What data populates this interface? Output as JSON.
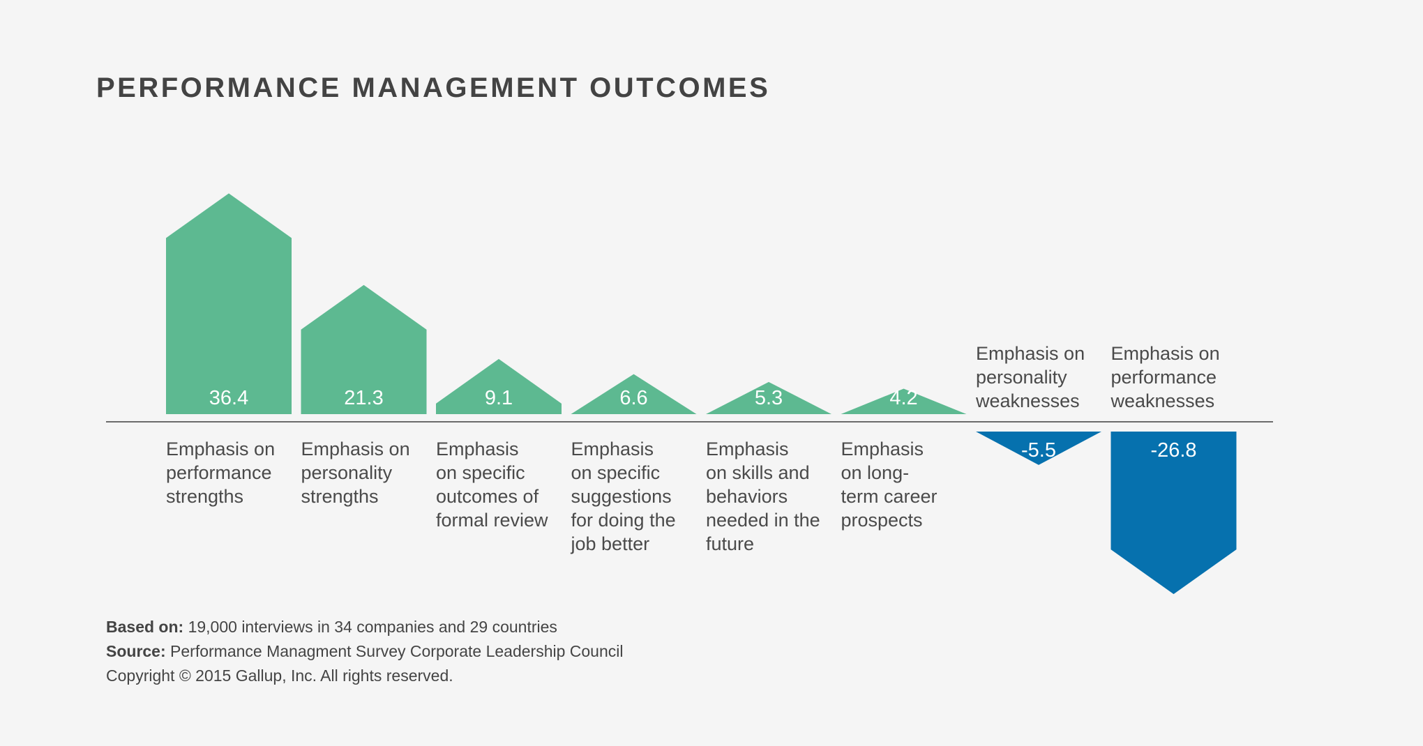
{
  "title": "PERFORMANCE MANAGEMENT OUTCOMES",
  "colors": {
    "positive": "#5db991",
    "negative": "#0671ae",
    "text": "#444444",
    "axis": "#6b6b6b",
    "background": "#f5f5f5"
  },
  "chart_data": {
    "type": "bar",
    "title": "PERFORMANCE MANAGEMENT OUTCOMES",
    "xlabel": "",
    "ylabel": "",
    "grid": false,
    "categories": [
      "Emphasis on performance strengths",
      "Emphasis on personality strengths",
      "Emphasis on specific outcomes of formal review",
      "Emphasis on specific suggestions for doing the job better",
      "Emphasis on skills and behaviors needed in the future",
      "Emphasis on long-term career prospects",
      "Emphasis on personality weaknesses",
      "Emphasis on performance weaknesses"
    ],
    "category_lines": [
      [
        "Emphasis on",
        "performance",
        "strengths"
      ],
      [
        "Emphasis on",
        "personality",
        "strengths"
      ],
      [
        "Emphasis",
        "on specific",
        "outcomes of",
        "formal review"
      ],
      [
        "Emphasis",
        "on specific",
        "suggestions",
        "for doing the",
        "job better"
      ],
      [
        "Emphasis",
        "on skills and",
        "behaviors",
        "needed in the",
        "future"
      ],
      [
        "Emphasis",
        "on long-",
        "term career",
        "prospects"
      ],
      [
        "Emphasis on",
        "personality",
        "weaknesses"
      ],
      [
        "Emphasis on",
        "performance",
        "weaknesses"
      ]
    ],
    "values": [
      36.4,
      21.3,
      9.1,
      6.6,
      5.3,
      4.2,
      -5.5,
      -26.8
    ],
    "value_labels": [
      "36.4",
      "21.3",
      "9.1",
      "6.6",
      "5.3",
      "4.2",
      "-5.5",
      "-26.8"
    ]
  },
  "footer": {
    "based_on_label": "Based on:",
    "based_on_text": " 19,000 interviews in 34 companies and 29 countries",
    "source_label": "Source:",
    "source_text": " Performance Managment Survey Corporate Leadership Council",
    "copyright": "Copyright © 2015 Gallup, Inc. All rights reserved."
  }
}
